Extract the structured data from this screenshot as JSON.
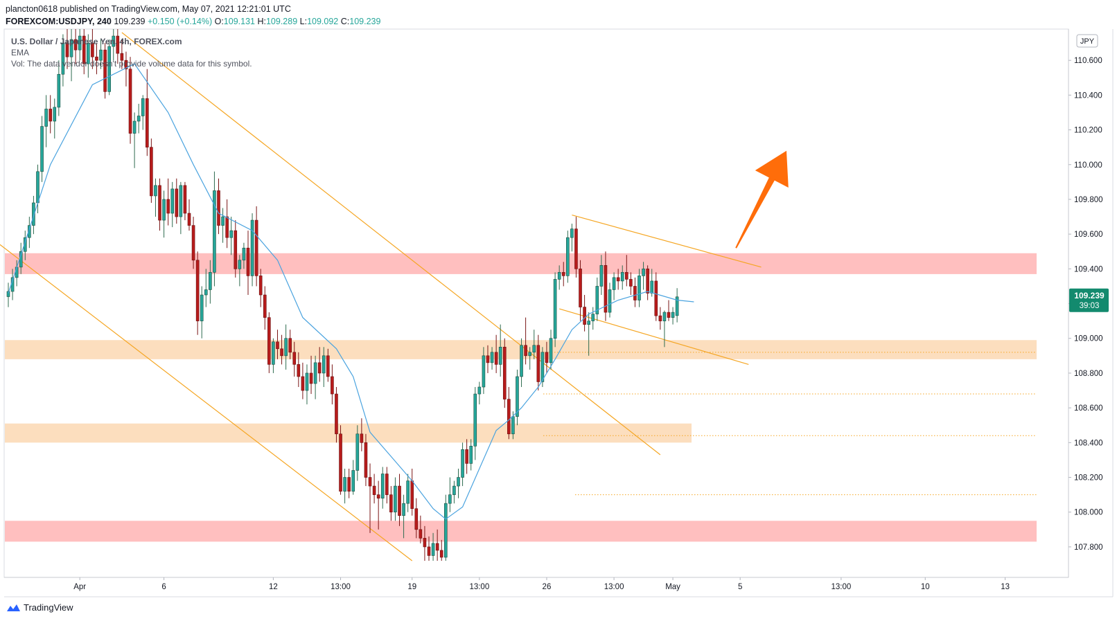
{
  "header": {
    "published_line": "plancton0618 published on TradingView.com, May 07, 2021 12:21:01 UTC",
    "symbol": "FOREXCOM:USDJPY, 240",
    "last": "109.239",
    "change": "+0.150 (+0.14%)",
    "o_label": "O:",
    "o_value": "109.131",
    "h_label": "H:",
    "h_value": "109.289",
    "l_label": "L:",
    "l_value": "109.092",
    "c_label": "C:",
    "c_value": "109.239"
  },
  "legend": {
    "title": "U.S. Dollar / Japanese Yen, 4h, FOREX.com",
    "ema": "EMA",
    "vol": "Vol: The data vendor doesn't provide volume data for this symbol."
  },
  "footer": {
    "brand": "TradingView"
  },
  "price_axis": {
    "currency_badge": "JPY",
    "current_price": "109.239",
    "countdown": "39:03"
  },
  "colors": {
    "up": "#26a69a",
    "down": "#b71c1c",
    "wick": "#37474f",
    "ema": "#4aa3df",
    "trendline": "#f5a623",
    "resistance_zone": "#ffbcbc",
    "support_zone": "#fcdcbb",
    "arrow": "#ff6d0a",
    "price_badge": "#138a6e"
  },
  "chart_data": {
    "type": "candlestick",
    "title": "U.S. Dollar / Japanese Yen, 4h, FOREX.com",
    "ylim": [
      107.72,
      110.78
    ],
    "y_ticks": [
      107.8,
      108.0,
      108.2,
      108.4,
      108.6,
      108.8,
      109.0,
      109.2,
      109.4,
      109.6,
      109.8,
      110.0,
      110.2,
      110.4,
      110.6
    ],
    "x_ticks": [
      "Apr",
      "6",
      "12",
      "13:00",
      "19",
      "13:00",
      "26",
      "13:00",
      "May",
      "5",
      "13:00",
      "10",
      "13"
    ],
    "last_price": 109.239,
    "zones": [
      {
        "kind": "resistance",
        "from": 109.37,
        "to": 109.49
      },
      {
        "kind": "support",
        "from": 108.88,
        "to": 108.99
      },
      {
        "kind": "support",
        "from": 108.4,
        "to": 108.51
      },
      {
        "kind": "resistance",
        "from": 107.83,
        "to": 107.95
      }
    ],
    "levels": [
      108.92,
      108.68,
      108.44,
      108.1
    ],
    "candles": [
      [
        109.24,
        109.32,
        109.18,
        109.27
      ],
      [
        109.27,
        109.4,
        109.22,
        109.35
      ],
      [
        109.35,
        109.45,
        109.3,
        109.41
      ],
      [
        109.41,
        109.55,
        109.37,
        109.5
      ],
      [
        109.5,
        109.62,
        109.45,
        109.58
      ],
      [
        109.58,
        109.7,
        109.52,
        109.65
      ],
      [
        109.65,
        109.82,
        109.6,
        109.78
      ],
      [
        109.78,
        110.0,
        109.72,
        109.96
      ],
      [
        109.96,
        110.28,
        109.9,
        110.22
      ],
      [
        110.22,
        110.4,
        110.1,
        110.32
      ],
      [
        110.32,
        110.4,
        110.18,
        110.25
      ],
      [
        110.25,
        110.38,
        110.15,
        110.33
      ],
      [
        110.33,
        110.6,
        110.28,
        110.52
      ],
      [
        110.52,
        110.75,
        110.45,
        110.7
      ],
      [
        110.7,
        110.78,
        110.55,
        110.62
      ],
      [
        110.62,
        110.78,
        110.48,
        110.72
      ],
      [
        110.72,
        110.78,
        110.58,
        110.66
      ],
      [
        110.66,
        110.78,
        110.6,
        110.74
      ],
      [
        110.74,
        110.78,
        110.52,
        110.58
      ],
      [
        110.58,
        110.75,
        110.5,
        110.7
      ],
      [
        110.7,
        110.78,
        110.55,
        110.62
      ],
      [
        110.62,
        110.7,
        110.52,
        110.6
      ],
      [
        110.6,
        110.72,
        110.55,
        110.66
      ],
      [
        110.66,
        110.7,
        110.38,
        110.42
      ],
      [
        110.42,
        110.72,
        110.4,
        110.68
      ],
      [
        110.68,
        110.78,
        110.6,
        110.74
      ],
      [
        110.74,
        110.78,
        110.58,
        110.64
      ],
      [
        110.64,
        110.72,
        110.55,
        110.6
      ],
      [
        110.6,
        110.65,
        110.45,
        110.55
      ],
      [
        110.55,
        110.62,
        110.12,
        110.18
      ],
      [
        110.18,
        110.3,
        109.98,
        110.25
      ],
      [
        110.25,
        110.35,
        110.18,
        110.28
      ],
      [
        110.28,
        110.4,
        110.2,
        110.38
      ],
      [
        110.38,
        110.55,
        110.05,
        110.1
      ],
      [
        110.1,
        110.15,
        109.78,
        109.82
      ],
      [
        109.82,
        109.92,
        109.7,
        109.88
      ],
      [
        109.88,
        109.92,
        109.62,
        109.68
      ],
      [
        109.68,
        109.85,
        109.58,
        109.8
      ],
      [
        109.8,
        109.92,
        109.65,
        109.72
      ],
      [
        109.72,
        109.9,
        109.64,
        109.86
      ],
      [
        109.86,
        109.92,
        109.66,
        109.7
      ],
      [
        109.7,
        109.9,
        109.6,
        109.88
      ],
      [
        109.88,
        109.9,
        109.68,
        109.72
      ],
      [
        109.72,
        109.8,
        109.62,
        109.65
      ],
      [
        109.65,
        109.7,
        109.4,
        109.45
      ],
      [
        109.45,
        109.5,
        109.02,
        109.1
      ],
      [
        109.1,
        109.3,
        109.0,
        109.25
      ],
      [
        109.25,
        109.4,
        109.18,
        109.28
      ],
      [
        109.28,
        109.45,
        109.2,
        109.38
      ],
      [
        109.38,
        109.96,
        109.3,
        109.85
      ],
      [
        109.85,
        109.92,
        109.6,
        109.65
      ],
      [
        109.65,
        109.75,
        109.55,
        109.7
      ],
      [
        109.7,
        109.8,
        109.52,
        109.58
      ],
      [
        109.58,
        109.7,
        109.48,
        109.62
      ],
      [
        109.62,
        109.68,
        109.35,
        109.4
      ],
      [
        109.4,
        109.48,
        109.3,
        109.45
      ],
      [
        109.45,
        109.55,
        109.4,
        109.52
      ],
      [
        109.52,
        109.62,
        109.25,
        109.36
      ],
      [
        109.36,
        109.72,
        109.3,
        109.68
      ],
      [
        109.68,
        109.76,
        109.3,
        109.36
      ],
      [
        109.36,
        109.4,
        109.18,
        109.25
      ],
      [
        109.25,
        109.3,
        109.05,
        109.12
      ],
      [
        109.12,
        109.15,
        108.8,
        108.85
      ],
      [
        108.85,
        109.0,
        108.8,
        108.98
      ],
      [
        108.98,
        109.05,
        108.88,
        108.94
      ],
      [
        108.94,
        109.02,
        108.85,
        108.9
      ],
      [
        108.9,
        109.08,
        108.82,
        109.0
      ],
      [
        109.0,
        109.05,
        108.88,
        108.92
      ],
      [
        108.92,
        108.98,
        108.78,
        108.85
      ],
      [
        108.85,
        108.92,
        108.72,
        108.78
      ],
      [
        108.78,
        108.86,
        108.65,
        108.7
      ],
      [
        108.7,
        108.85,
        108.62,
        108.8
      ],
      [
        108.8,
        108.9,
        108.68,
        108.74
      ],
      [
        108.74,
        108.9,
        108.65,
        108.86
      ],
      [
        108.86,
        108.95,
        108.75,
        108.8
      ],
      [
        108.8,
        108.95,
        108.72,
        108.9
      ],
      [
        108.9,
        108.94,
        108.75,
        108.78
      ],
      [
        108.78,
        108.85,
        108.62,
        108.68
      ],
      [
        108.68,
        108.72,
        108.4,
        108.45
      ],
      [
        108.45,
        108.5,
        108.1,
        108.12
      ],
      [
        108.12,
        108.25,
        108.05,
        108.2
      ],
      [
        108.2,
        108.25,
        108.08,
        108.12
      ],
      [
        108.12,
        108.3,
        108.1,
        108.24
      ],
      [
        108.24,
        108.5,
        108.18,
        108.45
      ],
      [
        108.45,
        108.54,
        108.35,
        108.4
      ],
      [
        108.4,
        108.45,
        108.15,
        108.2
      ],
      [
        108.2,
        108.28,
        107.88,
        108.15
      ],
      [
        108.15,
        108.22,
        108.05,
        108.1
      ],
      [
        108.1,
        108.18,
        107.9,
        108.08
      ],
      [
        108.08,
        108.26,
        108.02,
        108.22
      ],
      [
        108.22,
        108.26,
        108.05,
        108.1
      ],
      [
        108.1,
        108.15,
        107.95,
        108.0
      ],
      [
        108.0,
        108.2,
        107.95,
        108.15
      ],
      [
        108.15,
        108.22,
        107.92,
        107.98
      ],
      [
        107.98,
        108.1,
        107.85,
        108.05
      ],
      [
        108.05,
        108.22,
        108.0,
        108.18
      ],
      [
        108.18,
        108.25,
        107.98,
        108.02
      ],
      [
        108.02,
        108.08,
        107.85,
        107.9
      ],
      [
        107.9,
        107.98,
        107.82,
        107.85
      ],
      [
        107.85,
        107.92,
        107.72,
        107.8
      ],
      [
        107.8,
        107.86,
        107.72,
        107.75
      ],
      [
        107.75,
        107.88,
        107.72,
        107.82
      ],
      [
        107.82,
        107.9,
        107.72,
        107.78
      ],
      [
        107.78,
        107.84,
        107.72,
        107.74
      ],
      [
        107.74,
        108.1,
        107.72,
        108.05
      ],
      [
        108.05,
        108.2,
        108.0,
        108.1
      ],
      [
        108.1,
        108.18,
        108.05,
        108.15
      ],
      [
        108.15,
        108.25,
        108.08,
        108.2
      ],
      [
        108.2,
        108.4,
        108.15,
        108.36
      ],
      [
        108.36,
        108.42,
        108.22,
        108.28
      ],
      [
        108.28,
        108.42,
        108.24,
        108.38
      ],
      [
        108.38,
        108.72,
        108.3,
        108.68
      ],
      [
        108.68,
        108.75,
        108.62,
        108.72
      ],
      [
        108.72,
        108.95,
        108.68,
        108.9
      ],
      [
        108.9,
        108.96,
        108.8,
        108.86
      ],
      [
        108.86,
        108.95,
        108.82,
        108.92
      ],
      [
        108.92,
        109.02,
        108.8,
        108.85
      ],
      [
        108.85,
        109.08,
        108.78,
        108.95
      ],
      [
        108.95,
        109.0,
        108.6,
        108.65
      ],
      [
        108.65,
        108.72,
        108.42,
        108.45
      ],
      [
        108.45,
        108.58,
        108.42,
        108.55
      ],
      [
        108.55,
        108.82,
        108.5,
        108.78
      ],
      [
        108.78,
        109.0,
        108.72,
        108.96
      ],
      [
        108.96,
        109.12,
        108.85,
        108.9
      ],
      [
        108.9,
        108.95,
        108.82,
        108.92
      ],
      [
        108.92,
        109.05,
        108.88,
        108.96
      ],
      [
        108.96,
        109.02,
        108.7,
        108.75
      ],
      [
        108.75,
        108.95,
        108.72,
        108.92
      ],
      [
        108.92,
        108.98,
        108.8,
        108.86
      ],
      [
        108.86,
        109.05,
        108.82,
        109.0
      ],
      [
        109.0,
        109.38,
        108.95,
        109.34
      ],
      [
        109.34,
        109.42,
        109.28,
        109.38
      ],
      [
        109.38,
        109.44,
        109.3,
        109.36
      ],
      [
        109.36,
        109.62,
        109.32,
        109.58
      ],
      [
        109.58,
        109.66,
        109.5,
        109.63
      ],
      [
        109.63,
        109.7,
        109.35,
        109.4
      ],
      [
        109.4,
        109.45,
        109.1,
        109.18
      ],
      [
        109.18,
        109.25,
        109.04,
        109.08
      ],
      [
        109.08,
        109.15,
        108.9,
        109.1
      ],
      [
        109.1,
        109.18,
        109.05,
        109.14
      ],
      [
        109.14,
        109.35,
        109.1,
        109.3
      ],
      [
        109.3,
        109.48,
        109.25,
        109.42
      ],
      [
        109.42,
        109.5,
        109.1,
        109.15
      ],
      [
        109.15,
        109.32,
        109.12,
        109.28
      ],
      [
        109.28,
        109.38,
        109.22,
        109.35
      ],
      [
        109.35,
        109.4,
        109.28,
        109.33
      ],
      [
        109.33,
        109.42,
        109.28,
        109.38
      ],
      [
        109.38,
        109.48,
        109.3,
        109.34
      ],
      [
        109.34,
        109.38,
        109.25,
        109.3
      ],
      [
        109.3,
        109.35,
        109.18,
        109.22
      ],
      [
        109.22,
        109.4,
        109.18,
        109.36
      ],
      [
        109.36,
        109.44,
        109.28,
        109.4
      ],
      [
        109.4,
        109.42,
        109.22,
        109.26
      ],
      [
        109.26,
        109.4,
        109.24,
        109.33
      ],
      [
        109.33,
        109.38,
        109.1,
        109.13
      ],
      [
        109.13,
        109.18,
        109.05,
        109.1
      ],
      [
        109.1,
        109.16,
        108.95,
        109.15
      ],
      [
        109.15,
        109.22,
        109.1,
        109.12
      ],
      [
        109.12,
        109.18,
        109.08,
        109.15
      ],
      [
        109.131,
        109.289,
        109.092,
        109.239
      ]
    ],
    "ema": [
      [
        0,
        109.26
      ],
      [
        10,
        110.0
      ],
      [
        20,
        110.46
      ],
      [
        30,
        110.58
      ],
      [
        38,
        110.3
      ],
      [
        44,
        110.0
      ],
      [
        50,
        109.72
      ],
      [
        58,
        109.62
      ],
      [
        64,
        109.45
      ],
      [
        70,
        109.12
      ],
      [
        78,
        108.94
      ],
      [
        82,
        108.78
      ],
      [
        86,
        108.46
      ],
      [
        91,
        108.32
      ],
      [
        96,
        108.18
      ],
      [
        101,
        108.02
      ],
      [
        104,
        107.96
      ],
      [
        108,
        108.03
      ],
      [
        112,
        108.25
      ],
      [
        116,
        108.47
      ],
      [
        119,
        108.53
      ],
      [
        122,
        108.6
      ],
      [
        126,
        108.72
      ],
      [
        130,
        108.88
      ],
      [
        134,
        109.05
      ],
      [
        138,
        109.14
      ],
      [
        145,
        109.22
      ],
      [
        152,
        109.27
      ],
      [
        159,
        109.22
      ],
      [
        163,
        109.21
      ]
    ],
    "trendlines": [
      {
        "from": [
          -2,
          109.54
        ],
        "to": [
          96,
          107.72
        ]
      },
      {
        "from": [
          27,
          110.76
        ],
        "to": [
          155,
          108.33
        ]
      },
      {
        "from": [
          134,
          109.71
        ],
        "to": [
          179,
          109.41
        ]
      },
      {
        "from": [
          131,
          109.17
        ],
        "to": [
          176,
          108.85
        ]
      }
    ],
    "forecast_arrow": {
      "from": [
        173,
        109.52
      ],
      "to": [
        185,
        110.08
      ]
    }
  }
}
